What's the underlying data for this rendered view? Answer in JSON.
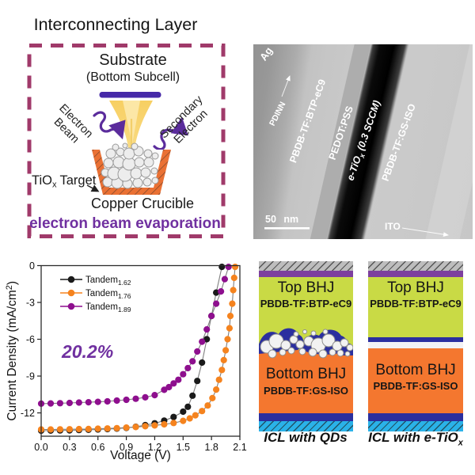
{
  "icl_panel": {
    "title": "Interconnecting Layer",
    "substrate_label": "Substrate",
    "substrate_sublabel": "(Bottom Subcell)",
    "electron_beam_line1": "Electron",
    "electron_beam_line2": "Beam",
    "secondary_electron_line1": "Secondary",
    "secondary_electron_line2": "Electron",
    "target_prefix": "TiO",
    "target_sub": "x",
    "target_suffix": "Target",
    "crucible_label": "Copper Crucible",
    "caption": "electron beam evaporation",
    "border_color": "#a03a6a",
    "caption_color": "#7030a0",
    "beam_color": "#f8d36e",
    "substrate_bar_color": "#4629a8",
    "crucible_color": "#ea7134",
    "arrow_color": "#5b2c9c"
  },
  "tem_panel": {
    "label_ag": "Ag",
    "label_pdinn": "PDINN",
    "label_top_active": "PBDB-TF:BTP-eC9",
    "label_pedot": "PEDOT:PSS",
    "label_etio_prefix": "e-TiO",
    "label_etio_sub": "x",
    "label_etio_suffix": " (0.3 SCCM)",
    "label_bottom_active": "PBDB-TF:GS-ISO",
    "label_ito": "ITO",
    "scale_bar_label": "50 nm"
  },
  "chart_data": {
    "type": "line",
    "title": "",
    "xlabel": "Voltage (V)",
    "ylabel": "Current Density (mA/cm2)",
    "ylabel_parts": [
      "Current Density (mA/cm",
      "2",
      ")"
    ],
    "xlim": [
      0,
      2.1
    ],
    "ylim": [
      -13.9,
      0
    ],
    "xtick_values": [
      0,
      0.3,
      0.6,
      0.9,
      1.2,
      1.5,
      1.8,
      2.1
    ],
    "xtick_labels": [
      "0.0",
      "0.3",
      "0.6",
      "0.9",
      "1.2",
      "1.5",
      "1.8",
      "2.1"
    ],
    "ytick_values": [
      0,
      -3,
      -6,
      -9,
      -12
    ],
    "ytick_labels": [
      "0",
      "-3",
      "-6",
      "-9",
      "-12"
    ],
    "grid": false,
    "legend_position": "upper-left",
    "line_color": "#7f7f7f",
    "annotation": {
      "text": "20.2%",
      "color": "#7030a0",
      "x": 0.49,
      "y": -7.0
    },
    "legend": [
      {
        "base": "Tandem",
        "sub": "1.62"
      },
      {
        "base": "Tandem",
        "sub": "1.76"
      },
      {
        "base": "Tandem",
        "sub": "1.89"
      }
    ],
    "series": [
      {
        "name": "Tandem 1.62",
        "color": "#1a1a1a",
        "x": [
          0,
          0.1,
          0.2,
          0.3,
          0.4,
          0.5,
          0.6,
          0.7,
          0.8,
          0.9,
          1.0,
          1.1,
          1.2,
          1.3,
          1.4,
          1.5,
          1.55,
          1.6,
          1.65,
          1.7,
          1.75,
          1.8,
          1.85,
          1.91
        ],
        "y": [
          -13.45,
          -13.44,
          -13.43,
          -13.42,
          -13.4,
          -13.38,
          -13.35,
          -13.32,
          -13.28,
          -13.22,
          -13.13,
          -13.0,
          -12.85,
          -12.63,
          -12.33,
          -11.9,
          -11.5,
          -10.6,
          -9.4,
          -7.9,
          -6.0,
          -4.1,
          -2.2,
          -0.1
        ]
      },
      {
        "name": "Tandem 1.76",
        "color": "#f5831e",
        "x": [
          0,
          0.1,
          0.2,
          0.3,
          0.4,
          0.5,
          0.6,
          0.7,
          0.8,
          0.9,
          1.0,
          1.1,
          1.2,
          1.3,
          1.4,
          1.5,
          1.57,
          1.63,
          1.7,
          1.76,
          1.81,
          1.85,
          1.88,
          1.91,
          1.93,
          1.95,
          1.97,
          1.99,
          2.0,
          2.02,
          2.03,
          2.04,
          2.05
        ],
        "y": [
          -13.35,
          -13.35,
          -13.34,
          -13.33,
          -13.32,
          -13.31,
          -13.29,
          -13.27,
          -13.24,
          -13.2,
          -13.15,
          -13.09,
          -13.02,
          -12.93,
          -12.82,
          -12.65,
          -12.45,
          -12.2,
          -11.85,
          -11.4,
          -10.8,
          -10.1,
          -9.3,
          -8.5,
          -7.7,
          -6.9,
          -6.0,
          -5.1,
          -4.1,
          -3.1,
          -2.0,
          -1.0,
          -0.1
        ]
      },
      {
        "name": "Tandem 1.89",
        "color": "#8e0f8e",
        "x": [
          0,
          0.1,
          0.2,
          0.3,
          0.4,
          0.5,
          0.6,
          0.7,
          0.8,
          0.9,
          1.0,
          1.1,
          1.2,
          1.3,
          1.35,
          1.4,
          1.45,
          1.5,
          1.55,
          1.6,
          1.65,
          1.7,
          1.75,
          1.8,
          1.85,
          1.9,
          1.94,
          1.98
        ],
        "y": [
          -11.25,
          -11.23,
          -11.21,
          -11.19,
          -11.16,
          -11.13,
          -11.1,
          -11.06,
          -11.0,
          -10.93,
          -10.85,
          -10.73,
          -10.55,
          -10.12,
          -9.9,
          -9.6,
          -9.3,
          -8.85,
          -8.35,
          -7.8,
          -7.0,
          -6.2,
          -5.2,
          -4.1,
          -3.1,
          -2.1,
          -1.1,
          -0.1
        ]
      }
    ]
  },
  "stacks_panel": {
    "left": {
      "top_title": "Top BHJ",
      "top_material": "PBDB-TF:BTP-eC9",
      "bottom_title": "Bottom BHJ",
      "bottom_material": "PBDB-TF:GS-ISO",
      "caption": "ICL with QDs"
    },
    "right": {
      "top_title": "Top BHJ",
      "top_material": "PBDB-TF:BTP-eC9",
      "bottom_title": "Bottom BHJ",
      "bottom_material": "PBDB-TF:GS-ISO",
      "caption_prefix": "ICL with e-TiO",
      "caption_sub": "x"
    },
    "colors": {
      "electrode_gray": "#bdbdbd",
      "pdinn_purple": "#7d3f9e",
      "top_bhj_green": "#c9da45",
      "icl_blue": "#2b2f9f",
      "etio_white": "#f2f2f5",
      "bottom_bhj_orange": "#f4772f",
      "ito_cyan": "#2ab2e8"
    }
  }
}
